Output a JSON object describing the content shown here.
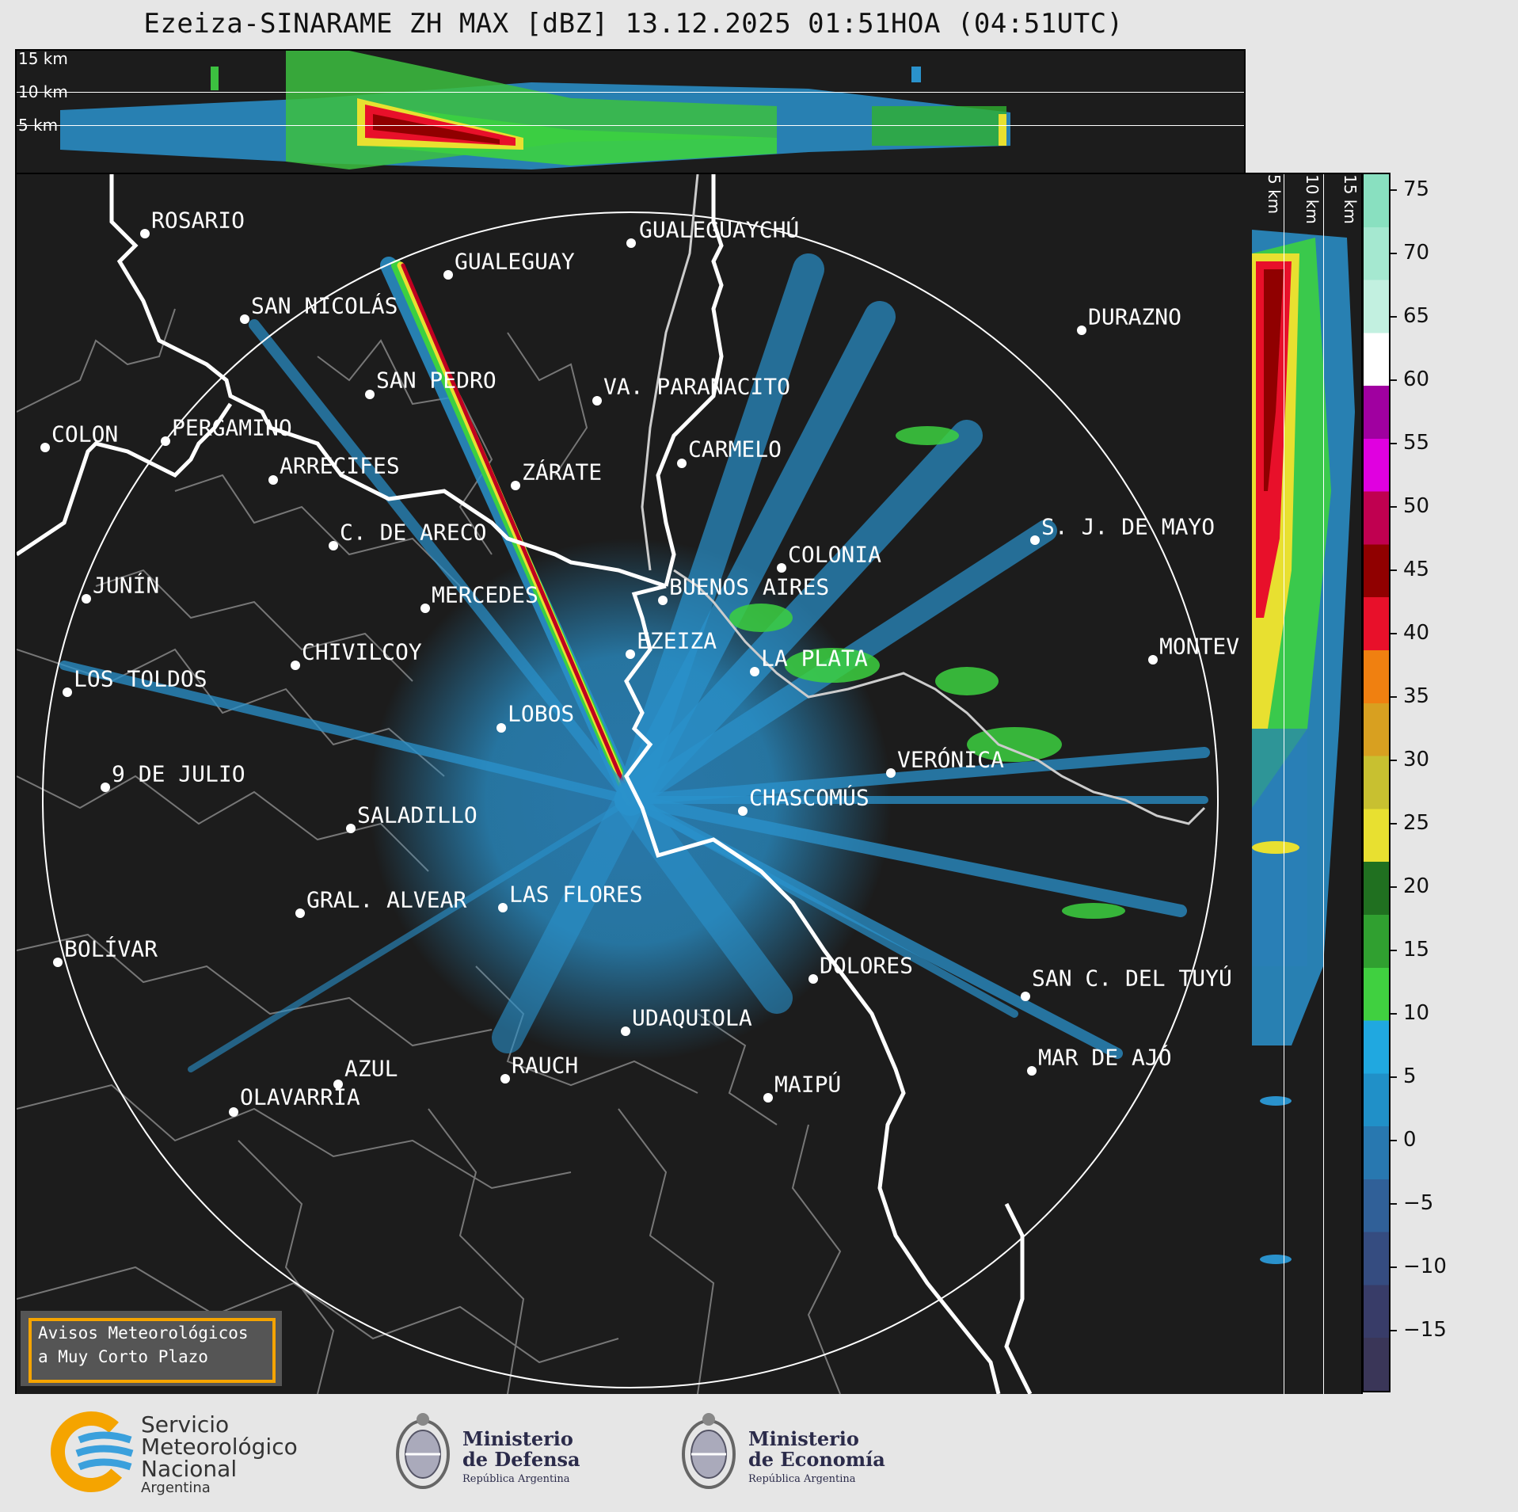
{
  "title": "Ezeiza-SINARAME ZH MAX [dBZ] 13.12.2025 01:51HOA (04:51UTC)",
  "top_panel": {
    "height_labels": [
      "15 km",
      "10 km",
      "5 km"
    ]
  },
  "side_panel": {
    "height_labels": [
      "5 km",
      "10 km",
      "15 km"
    ]
  },
  "colorbar": {
    "unit": "dBZ",
    "ticks": [
      "75",
      "70",
      "65",
      "60",
      "55",
      "50",
      "45",
      "40",
      "35",
      "30",
      "25",
      "20",
      "15",
      "10",
      "5",
      "0",
      "−5",
      "−10",
      "−15"
    ],
    "colors": [
      "#89e0c0",
      "#a5e8d0",
      "#c2f0e0",
      "#ffffff",
      "#a000a0",
      "#e000e0",
      "#c00050",
      "#900000",
      "#e8102a",
      "#f08010",
      "#d8a020",
      "#c8c030",
      "#e8e030",
      "#207020",
      "#30a030",
      "#40d040",
      "#20a8e0",
      "#2090c8",
      "#2878b0",
      "#306098",
      "#354c80",
      "#383c68",
      "#3a3658"
    ]
  },
  "cities": [
    {
      "name": "ROSARIO"
    },
    {
      "name": "GUALEGUAYCHÚ"
    },
    {
      "name": "GUALEGUAY"
    },
    {
      "name": "SAN NICOLÁS"
    },
    {
      "name": "DURAZNO"
    },
    {
      "name": "SAN PEDRO"
    },
    {
      "name": "VA. PARANACITO"
    },
    {
      "name": "COLON"
    },
    {
      "name": "PERGAMINO"
    },
    {
      "name": "ARRECIFES"
    },
    {
      "name": "CARMELO"
    },
    {
      "name": "ZÁRATE"
    },
    {
      "name": "S. J. DE MAYO"
    },
    {
      "name": "C. DE ARECO"
    },
    {
      "name": "COLONIA"
    },
    {
      "name": "JUNÍN"
    },
    {
      "name": "BUENOS AIRES"
    },
    {
      "name": "MERCEDES"
    },
    {
      "name": "MONTEV"
    },
    {
      "name": "EZEIZA"
    },
    {
      "name": "CHIVILCOY"
    },
    {
      "name": "LA PLATA"
    },
    {
      "name": "LOS TOLDOS"
    },
    {
      "name": "LOBOS"
    },
    {
      "name": "VERÓNICA"
    },
    {
      "name": "9 DE JULIO"
    },
    {
      "name": "CHASCOMÚS"
    },
    {
      "name": "SALADILLO"
    },
    {
      "name": "GRAL. ALVEAR"
    },
    {
      "name": "LAS FLORES"
    },
    {
      "name": "BOLÍVAR"
    },
    {
      "name": "DOLORES"
    },
    {
      "name": "SAN C. DEL TUYÚ"
    },
    {
      "name": "UDAQUIOLA"
    },
    {
      "name": "MAR DE AJÓ"
    },
    {
      "name": "AZUL"
    },
    {
      "name": "RAUCH"
    },
    {
      "name": "OLAVARRÍA"
    },
    {
      "name": "MAIPÚ"
    }
  ],
  "notice": {
    "line1": "Avisos Meteorológicos",
    "line2": "a Muy Corto Plazo"
  },
  "footer": {
    "smn_line1": "Servicio",
    "smn_line2": "Meteorológico",
    "smn_line3": "Nacional",
    "smn_line4": "Argentina",
    "defensa_line1": "Ministerio",
    "defensa_line2": "de Defensa",
    "defensa_line3": "República Argentina",
    "economia_line1": "Ministerio",
    "economia_line2": "de Economía",
    "economia_line3": "República Argentina"
  }
}
